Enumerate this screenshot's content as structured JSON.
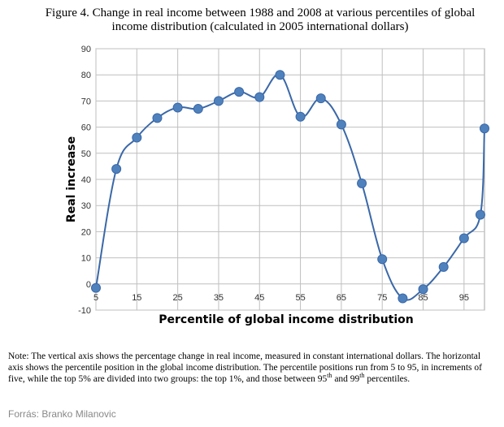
{
  "chart_data": {
    "type": "line",
    "title": "Figure 4. Change in real income between 1988 and 2008 at various percentiles of global income distribution (calculated in 2005 international dollars)",
    "xlabel": "Percentile of global income distribution",
    "ylabel": "Real increase",
    "xlim": [
      5,
      100
    ],
    "ylim": [
      -10,
      90
    ],
    "x_ticks": [
      5,
      15,
      25,
      35,
      45,
      55,
      65,
      75,
      85,
      95
    ],
    "y_ticks": [
      -10,
      0,
      10,
      20,
      30,
      40,
      50,
      60,
      70,
      80,
      90
    ],
    "grid": true,
    "series": [
      {
        "x": [
          5,
          10,
          15,
          20,
          25,
          30,
          35,
          40,
          45,
          50,
          55,
          60,
          65,
          70,
          75,
          80,
          85,
          90,
          95,
          99,
          100
        ],
        "y": [
          -1.5,
          44,
          56,
          63.5,
          67.5,
          67,
          70,
          73.5,
          71.5,
          80,
          64,
          71,
          61,
          38.5,
          9.5,
          -5.5,
          -2,
          6.5,
          17.5,
          26.5,
          59.5
        ]
      }
    ],
    "marker_color": "#4f81bd",
    "line_color": "#3a68a8"
  },
  "title_lines": [
    "Figure 4. Change in real income between 1988 and 2008 at various percentiles of global",
    "income distribution (calculated in 2005 international dollars)"
  ],
  "note": {
    "text_1": "Note: The vertical axis shows the percentage change in real income, measured in constant international dollars. The horizontal axis shows the percentile position in the global income distribution. The percentile positions run from 5 to 95, in increments of five, while the top 5% are divided into two groups: the top 1%, and those between 95",
    "sup_1": "th",
    "text_2": " and 99",
    "sup_2": "th",
    "text_3": " percentiles."
  },
  "source": "Forrás: Branko Milanovic"
}
